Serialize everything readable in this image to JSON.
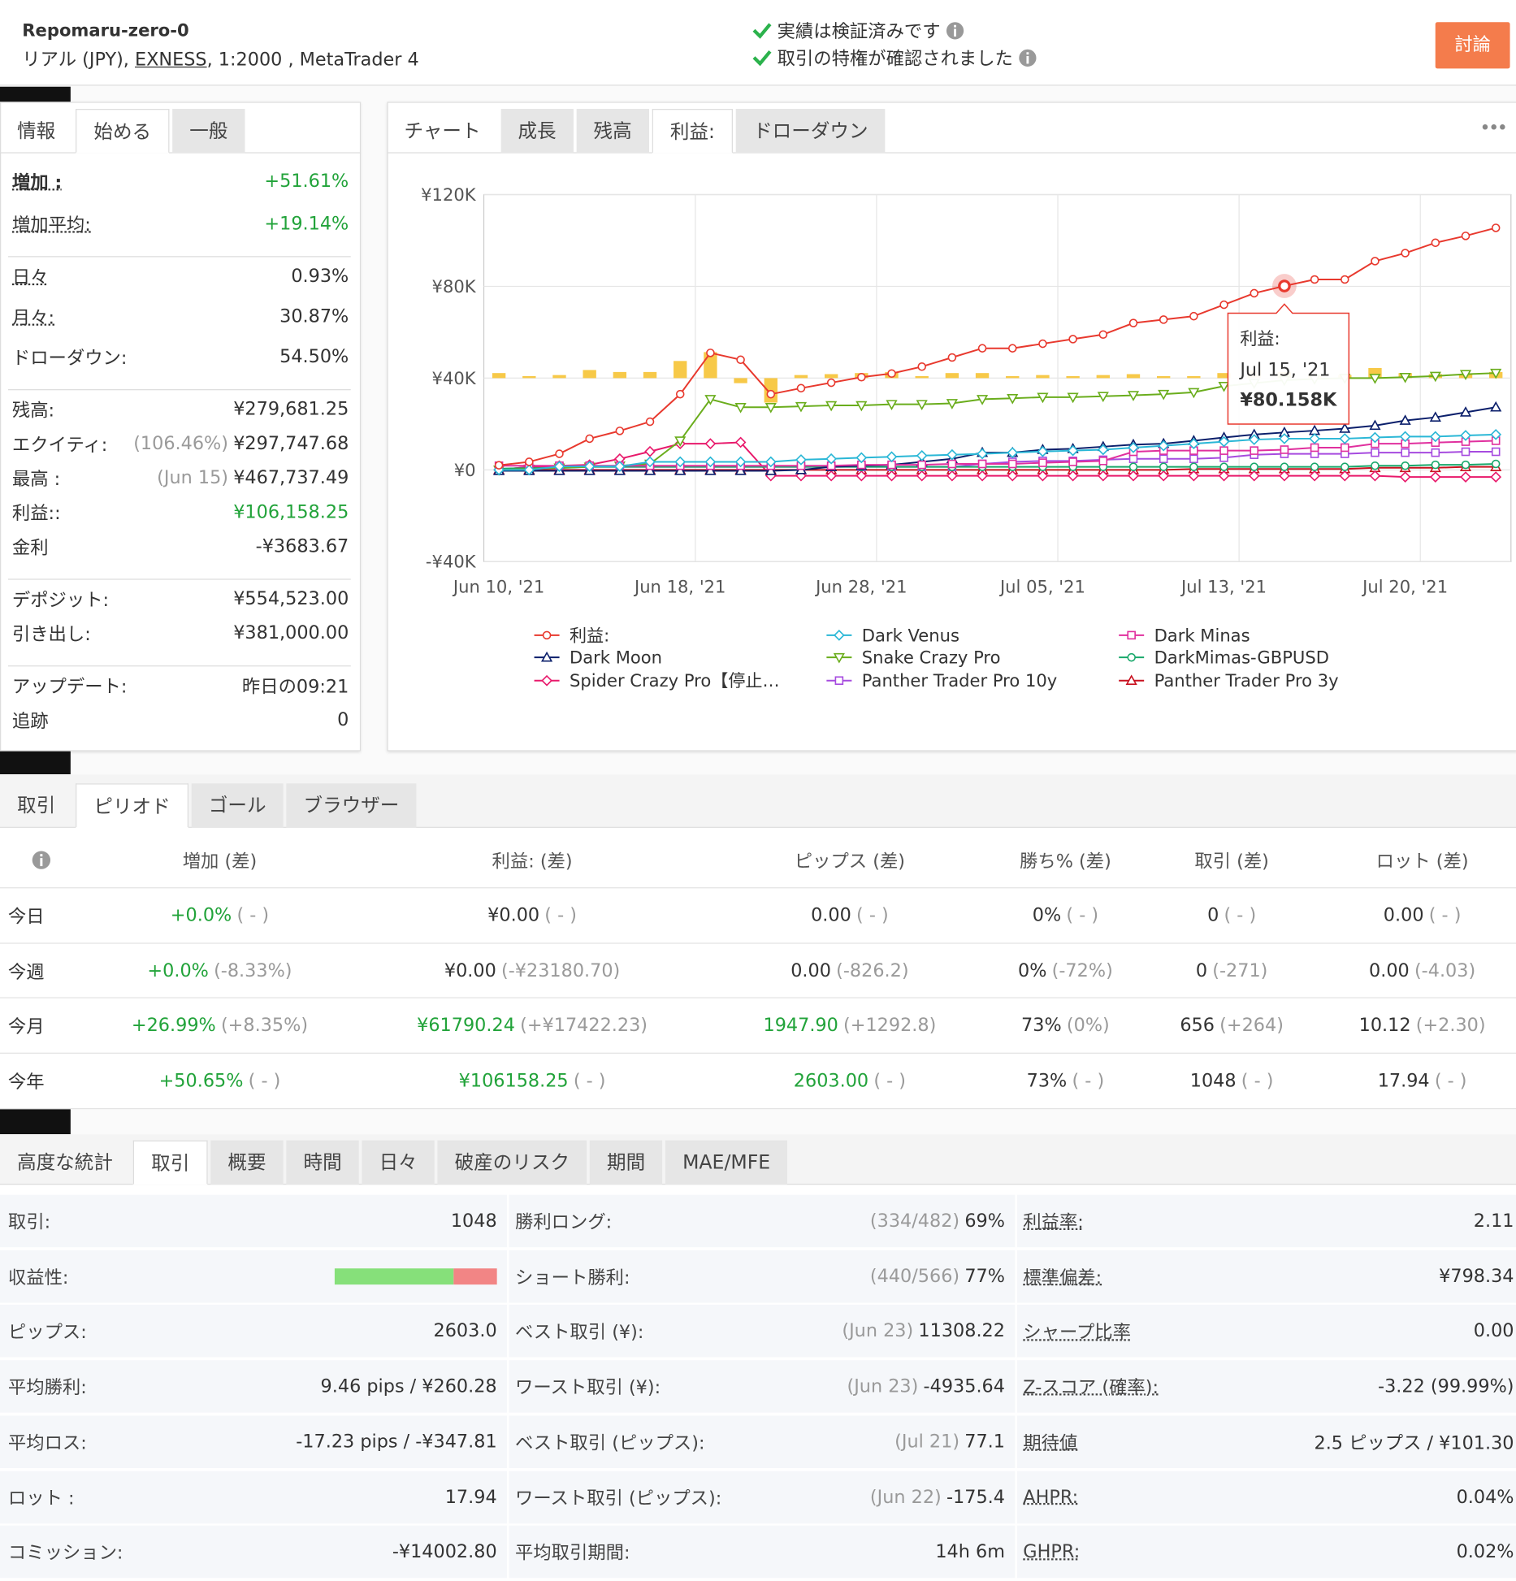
{
  "header": {
    "title": "Repomaru-zero-0",
    "account": "リアル (JPY), ",
    "broker": "EXNESS",
    "details": ", 1:2000 , MetaTrader 4",
    "checks": [
      "実績は検証済みです",
      "取引の特権が確認されました"
    ],
    "button": "討論"
  },
  "info_panel": {
    "tabs": [
      "情報",
      "始める",
      "一般"
    ],
    "active_tab": 1,
    "groups": [
      [
        {
          "label": "増加 :",
          "value": "+51.61%",
          "green": true,
          "underline": true,
          "bold": true
        },
        {
          "label": "増加平均:",
          "value": "+19.14%",
          "green": true,
          "underline": true
        }
      ],
      [
        {
          "label": "日々",
          "value": "0.93%",
          "underline": true
        },
        {
          "label": "月々:",
          "value": "30.87%",
          "underline": true
        },
        {
          "label": "ドローダウン:",
          "value": "54.50%"
        }
      ],
      [
        {
          "label": "残高:",
          "value": "¥279,681.25"
        },
        {
          "label": "エクイティ:",
          "note": "(106.46%)",
          "value": "¥297,747.68"
        },
        {
          "label": "最高 :",
          "note": "(Jun 15)",
          "value": "¥467,737.49"
        },
        {
          "label": "利益::",
          "value": "¥106,158.25",
          "green": true
        },
        {
          "label": "金利",
          "value": "-¥3683.67"
        }
      ],
      [
        {
          "label": "デポジット:",
          "value": "¥554,523.00"
        },
        {
          "label": "引き出し:",
          "value": "¥381,000.00"
        }
      ],
      [
        {
          "label": "アップデート:",
          "value": "昨日の09:21"
        },
        {
          "label": "追跡",
          "value": "0"
        }
      ]
    ]
  },
  "chart_panel": {
    "tabs": [
      "チャート",
      "成長",
      "残高",
      "利益:",
      "ドローダウン"
    ],
    "active_tab": 3,
    "menu": "•••",
    "chart_data": {
      "type": "line",
      "categories": [
        "Jun 10, '21",
        null,
        null,
        null,
        null,
        null,
        "Jun 18, '21",
        null,
        null,
        null,
        null,
        null,
        "Jun 28, '21",
        null,
        null,
        null,
        null,
        null,
        "Jul 05, '21",
        null,
        null,
        null,
        null,
        null,
        "Jul 13, '21",
        null,
        null,
        null,
        null,
        null,
        "Jul 20, '21",
        null,
        null,
        null
      ],
      "ylim": [
        -40000,
        120000
      ],
      "yticks": [
        {
          "value": -40000,
          "label": "-¥40K"
        },
        {
          "value": 0,
          "label": "¥0"
        },
        {
          "value": 40000,
          "label": "¥40K"
        },
        {
          "value": 80000,
          "label": "¥80K"
        },
        {
          "value": 120000,
          "label": "¥120K"
        }
      ],
      "y2lim": [
        -120000,
        120000
      ],
      "grid": true,
      "legend": "bottom",
      "series": [
        {
          "name": "利益:",
          "color": "#e8392e",
          "marker": "circle",
          "values": [
            2000,
            3500,
            7000,
            13600,
            17000,
            21000,
            33000,
            51000,
            48000,
            33000,
            35600,
            38000,
            40400,
            42000,
            45000,
            49000,
            53000,
            53000,
            55000,
            57000,
            59000,
            64000,
            65500,
            67000,
            72000,
            77000,
            80158,
            83000,
            83000,
            91000,
            94500,
            99000,
            102000,
            105500
          ],
          "value_labels": [
            null,
            null,
            null,
            null,
            null,
            null,
            null,
            null,
            null,
            null,
            null,
            null,
            null,
            null,
            null,
            null,
            null,
            null,
            null,
            null,
            null,
            null,
            null,
            null,
            null,
            null,
            "¥80.158K",
            null,
            null,
            null,
            null,
            null,
            null,
            null
          ]
        },
        {
          "name": "Dark Venus",
          "color": "#2ab7d6",
          "marker": "diamond",
          "values": [
            0,
            0,
            1500,
            1500,
            1500,
            3500,
            3500,
            3500,
            3500,
            3500,
            4400,
            4800,
            5300,
            5700,
            6200,
            6600,
            7000,
            7500,
            8000,
            8400,
            8800,
            9700,
            10500,
            11400,
            12300,
            13200,
            13600,
            13600,
            13600,
            14100,
            14500,
            14500,
            15000,
            15400
          ]
        },
        {
          "name": "Dark Minas",
          "color": "#e0309e",
          "marker": "square",
          "values": [
            1800,
            1800,
            1800,
            1800,
            1800,
            1800,
            1800,
            1800,
            1800,
            1800,
            1800,
            1800,
            2200,
            2200,
            2200,
            2600,
            2600,
            2600,
            3100,
            3500,
            3900,
            7900,
            8400,
            8400,
            8400,
            8400,
            8800,
            9700,
            9700,
            11400,
            11400,
            11900,
            12300,
            12700
          ]
        },
        {
          "name": "Dark Moon",
          "color": "#0b1f6b",
          "marker": "triangle",
          "values": [
            -400,
            -400,
            -400,
            -400,
            -400,
            -400,
            -400,
            -400,
            -400,
            -400,
            0,
            1300,
            1800,
            2200,
            3500,
            4800,
            7500,
            7500,
            8800,
            9200,
            10100,
            11000,
            11400,
            12700,
            14100,
            15400,
            16300,
            17100,
            18000,
            19300,
            21500,
            22900,
            25100,
            27300
          ]
        },
        {
          "name": "Snake Crazy Pro",
          "color": "#6aad1c",
          "marker": "triangle-down",
          "values": [
            0,
            400,
            900,
            1300,
            1800,
            2600,
            12700,
            30800,
            27300,
            27300,
            27700,
            28100,
            28100,
            28600,
            28600,
            29000,
            30800,
            31200,
            31700,
            31700,
            32100,
            32500,
            33000,
            33800,
            36500,
            37800,
            39100,
            39600,
            40000,
            40000,
            40400,
            40900,
            41700,
            42200
          ]
        },
        {
          "name": "DarkMimas-GBPUSD",
          "color": "#19a86b",
          "marker": "circle",
          "values": [
            500,
            800,
            800,
            1300,
            1300,
            1300,
            1300,
            1300,
            1300,
            1300,
            1300,
            1300,
            1300,
            1300,
            1300,
            1300,
            1300,
            1300,
            1300,
            1300,
            1300,
            1300,
            1300,
            1300,
            1300,
            1300,
            1300,
            1300,
            1300,
            1800,
            1800,
            2200,
            2200,
            2600
          ]
        },
        {
          "name": "Spider Crazy Pro【停止…",
          "color": "#e8196b",
          "marker": "diamond",
          "values": [
            0,
            1300,
            1800,
            2200,
            4800,
            8000,
            11400,
            11400,
            12000,
            -2600,
            -2600,
            -2600,
            -2600,
            -2600,
            -2600,
            -2600,
            -2600,
            -2600,
            -2600,
            -2600,
            -2600,
            -2600,
            -2600,
            -2600,
            -2600,
            -2600,
            -2600,
            -2600,
            -2600,
            -2600,
            -3100,
            -3100,
            -3100,
            -3100
          ]
        },
        {
          "name": "Panther Trader Pro 10y",
          "color": "#a64bdf",
          "marker": "square",
          "values": [
            0,
            1300,
            1300,
            1300,
            1300,
            1300,
            1300,
            1300,
            1300,
            1300,
            1300,
            1300,
            1300,
            1300,
            1300,
            1300,
            2600,
            3500,
            3900,
            3900,
            4400,
            4800,
            4800,
            4800,
            5300,
            6600,
            7000,
            7000,
            7000,
            7500,
            7500,
            7500,
            7900,
            7900
          ]
        },
        {
          "name": "Panther Trader Pro 3y",
          "color": "#c8101f",
          "marker": "triangle",
          "values": [
            0,
            0,
            0,
            0,
            0,
            0,
            0,
            0,
            0,
            0,
            0,
            0,
            0,
            0,
            0,
            0,
            0,
            0,
            0,
            0,
            0,
            0,
            0,
            400,
            400,
            400,
            400,
            400,
            400,
            900,
            900,
            900,
            1300,
            1300
          ]
        }
      ],
      "bars": {
        "color": "#f7c948",
        "axis": "y2",
        "values": [
          3300,
          1300,
          2000,
          5300,
          4000,
          4000,
          11200,
          17000,
          -3300,
          -16000,
          2000,
          2600,
          3300,
          4000,
          1300,
          3300,
          3300,
          1300,
          2000,
          1300,
          2000,
          2600,
          1300,
          1300,
          3300,
          5300,
          4000,
          2000,
          2000,
          6600,
          3300,
          2600,
          2600,
          4000
        ]
      }
    },
    "tooltip": {
      "date": "Jul 15, '21"
    }
  },
  "period": {
    "tabs": [
      "取引",
      "ピリオド",
      "ゴール",
      "ブラウザー"
    ],
    "active_tab": 1,
    "columns": [
      "増加 (差)",
      "利益: (差)",
      "ピップス (差)",
      "勝ち% (差)",
      "取引 (差)",
      "ロット (差)"
    ],
    "rows": [
      {
        "label": "今日",
        "cells": [
          {
            "text": "+0.0%",
            "diff": "( - )",
            "green": true
          },
          {
            "text": "¥0.00",
            "diff": "( - )"
          },
          {
            "text": "0.00",
            "diff": "( - )"
          },
          {
            "text": "0%",
            "diff": "( - )"
          },
          {
            "text": "0",
            "diff": "( - )"
          },
          {
            "text": "0.00",
            "diff": "( - )"
          }
        ]
      },
      {
        "label": "今週",
        "cells": [
          {
            "text": "+0.0%",
            "diff": "(-8.33%)",
            "green": true
          },
          {
            "text": "¥0.00",
            "diff": "(-¥23180.70)"
          },
          {
            "text": "0.00",
            "diff": "(-826.2)"
          },
          {
            "text": "0%",
            "diff": "(-72%)"
          },
          {
            "text": "0",
            "diff": "(-271)"
          },
          {
            "text": "0.00",
            "diff": "(-4.03)"
          }
        ]
      },
      {
        "label": "今月",
        "cells": [
          {
            "text": "+26.99%",
            "diff": "(+8.35%)",
            "green": true
          },
          {
            "text": "¥61790.24",
            "diff": "(+¥17422.23)",
            "green": true
          },
          {
            "text": "1947.90",
            "diff": "(+1292.8)",
            "green": true
          },
          {
            "text": "73%",
            "diff": "(0%)"
          },
          {
            "text": "656",
            "diff": "(+264)"
          },
          {
            "text": "10.12",
            "diff": "(+2.30)"
          }
        ]
      },
      {
        "label": "今年",
        "cells": [
          {
            "text": "+50.65%",
            "diff": "( - )",
            "green": true
          },
          {
            "text": "¥106158.25",
            "diff": "( - )",
            "green": true
          },
          {
            "text": "2603.00",
            "diff": "( - )",
            "green": true
          },
          {
            "text": "73%",
            "diff": "( - )"
          },
          {
            "text": "1048",
            "diff": "( - )"
          },
          {
            "text": "17.94",
            "diff": "( - )"
          }
        ]
      }
    ]
  },
  "stats": {
    "tabs": [
      "高度な統計",
      "取引",
      "概要",
      "時間",
      "日々",
      "破産のリスク",
      "期間",
      "MAE/MFE"
    ],
    "active_tab": 1,
    "columns": [
      [
        {
          "label": "取引:",
          "value": "1048"
        },
        {
          "label": "収益性:",
          "bar": [
            73,
            27
          ]
        },
        {
          "label": "ピップス:",
          "value": "2603.0"
        },
        {
          "label": "平均勝利:",
          "value": "9.46 pips / ¥260.28"
        },
        {
          "label": "平均ロス:",
          "value": "-17.23 pips / -¥347.81"
        },
        {
          "label": "ロット :",
          "value": "17.94"
        },
        {
          "label": "コミッション:",
          "value": "-¥14002.80"
        }
      ],
      [
        {
          "label": "勝利ロング:",
          "note": "(334/482)",
          "value": "69%"
        },
        {
          "label": "ショート勝利:",
          "note": "(440/566)",
          "value": "77%"
        },
        {
          "label": "ベスト取引 (¥):",
          "note": "(Jun 23)",
          "value": "11308.22"
        },
        {
          "label": "ワースト取引 (¥):",
          "note": "(Jun 23)",
          "value": "-4935.64"
        },
        {
          "label": "ベスト取引 (ピップス):",
          "note": "(Jul 21)",
          "value": "77.1"
        },
        {
          "label": "ワースト取引 (ピップス):",
          "note": "(Jun 22)",
          "value": "-175.4"
        },
        {
          "label": "平均取引期間:",
          "value": "14h 6m"
        }
      ],
      [
        {
          "label": "利益率:",
          "value": "2.11",
          "underline": true
        },
        {
          "label": "標準偏差:",
          "value": "¥798.34",
          "underline": true
        },
        {
          "label": "シャープ比率",
          "value": "0.00",
          "underline": true
        },
        {
          "label": "Z-スコア (確率):",
          "value": "-3.22 (99.99%)",
          "underline": true
        },
        {
          "label": "期待値",
          "value": "2.5 ピップス / ¥101.30",
          "underline": true
        },
        {
          "label": "AHPR:",
          "value": "0.04%",
          "underline": true
        },
        {
          "label": "GHPR:",
          "value": "0.02%",
          "underline": true
        }
      ]
    ]
  }
}
